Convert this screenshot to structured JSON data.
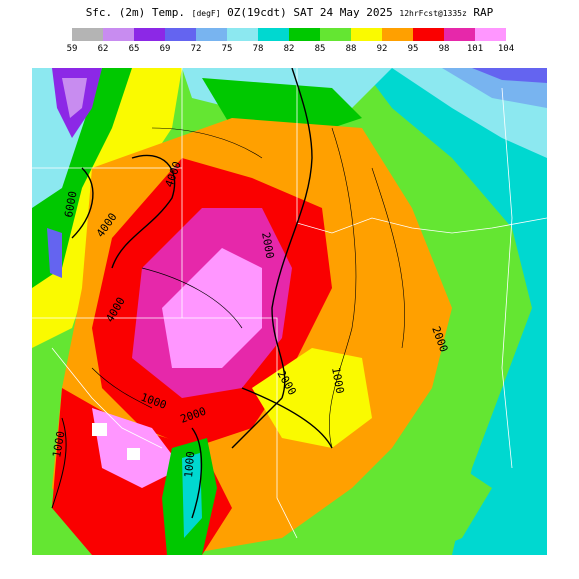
{
  "header": {
    "title_main": "Sfc. (2m) Temp. ",
    "title_units": "[degF]",
    "title_time": " 0Z(19cdt) SAT 24 May 2025 ",
    "title_run": "12hrFcst@1335z",
    "title_model": " RAP"
  },
  "legend": {
    "colors": [
      "#b4b4b4",
      "#c88cf0",
      "#8c28e6",
      "#6464f0",
      "#78b4f0",
      "#8ce8f0",
      "#00d8d0",
      "#00c800",
      "#64e632",
      "#fafa00",
      "#ffa000",
      "#fa0000",
      "#e628aa",
      "#ff96ff",
      "#ffffff"
    ],
    "labels": [
      "59",
      "62",
      "65",
      "69",
      "72",
      "75",
      "78",
      "82",
      "85",
      "88",
      "92",
      "95",
      "98",
      "101",
      "104"
    ]
  },
  "map": {
    "contour_labels": [
      "6000",
      "4000",
      "4000",
      "2000",
      "2000",
      "1000",
      "2000",
      "1000",
      "1000",
      "4000",
      "1000",
      "2000"
    ]
  }
}
